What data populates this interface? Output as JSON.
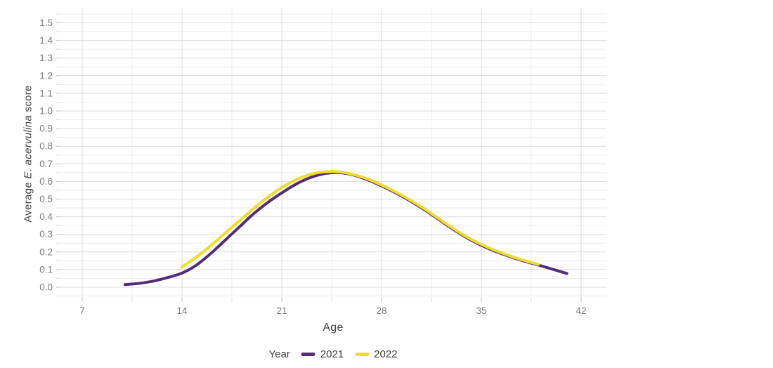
{
  "chart": {
    "y_axis_title": {
      "prefix": "Average ",
      "italic": "E. acervulina",
      "suffix": " score"
    },
    "colors": {
      "background": "#ffffff",
      "grid_major": "#dcdcdc",
      "grid_minor": "#eeeeee",
      "tick_mark_major": "#c6c6c6",
      "tick_mark_minor": "#dcdcdc",
      "tick_label_text": "#7d7d7d",
      "axis_title_text": "#3f3f3f",
      "series_2021": "#552c78",
      "series_2022": "#efdd2e"
    }
  },
  "chart_data": {
    "type": "line",
    "title": "",
    "xlabel": "Age",
    "ylabel": "Average E. acervulina score",
    "legend_title": "Year",
    "legend_position": "bottom-center",
    "grid": "major+minor",
    "xlim": [
      5.5,
      43.8
    ],
    "ylim": [
      -0.06,
      1.58
    ],
    "x_ticks": [
      7,
      14,
      21,
      28,
      35,
      42
    ],
    "x_tick_labels": [
      "7",
      "14",
      "21",
      "28",
      "35",
      "42"
    ],
    "x_minor_ticks": [
      10.5,
      17.5,
      24.5,
      31.5,
      38.5
    ],
    "y_ticks": [
      0.0,
      0.1,
      0.2,
      0.3,
      0.4,
      0.5,
      0.6,
      0.7,
      0.8,
      0.9,
      1.0,
      1.1,
      1.2,
      1.3,
      1.4,
      1.5
    ],
    "y_tick_labels": [
      "0.0",
      "0.1",
      "0.2",
      "0.3",
      "0.4",
      "0.5",
      "0.6",
      "0.7",
      "0.8",
      "0.9",
      "1.0",
      "1.1",
      "1.2",
      "1.3",
      "1.4",
      "1.5"
    ],
    "y_minor_ticks": [
      -0.05,
      0.05,
      0.15,
      0.25,
      0.35,
      0.45,
      0.55,
      0.65,
      0.75,
      0.85,
      0.95,
      1.05,
      1.15,
      1.25,
      1.35,
      1.45,
      1.55
    ],
    "series": [
      {
        "name": "2021",
        "color": "#552c78",
        "x": [
          10,
          11,
          12,
          13,
          14,
          15,
          16,
          17,
          18,
          19,
          20,
          21,
          22,
          23,
          24,
          25,
          26,
          27,
          28,
          29,
          30,
          31,
          32,
          33,
          34,
          35,
          36,
          37,
          38,
          39,
          40,
          41
        ],
        "y": [
          0.015,
          0.022,
          0.035,
          0.055,
          0.08,
          0.125,
          0.19,
          0.265,
          0.34,
          0.415,
          0.48,
          0.535,
          0.585,
          0.622,
          0.645,
          0.65,
          0.637,
          0.61,
          0.575,
          0.535,
          0.49,
          0.44,
          0.385,
          0.33,
          0.28,
          0.238,
          0.203,
          0.174,
          0.148,
          0.126,
          0.102,
          0.078
        ]
      },
      {
        "name": "2022",
        "color": "#efdd2e",
        "x": [
          14,
          15,
          16,
          17,
          18,
          19,
          20,
          21,
          22,
          23,
          24,
          25,
          26,
          27,
          28,
          29,
          30,
          31,
          32,
          33,
          34,
          35,
          36,
          37,
          38,
          39
        ],
        "y": [
          0.115,
          0.17,
          0.235,
          0.305,
          0.375,
          0.445,
          0.51,
          0.565,
          0.61,
          0.64,
          0.655,
          0.655,
          0.64,
          0.615,
          0.58,
          0.54,
          0.495,
          0.445,
          0.39,
          0.335,
          0.285,
          0.243,
          0.208,
          0.178,
          0.152,
          0.13
        ]
      }
    ]
  }
}
